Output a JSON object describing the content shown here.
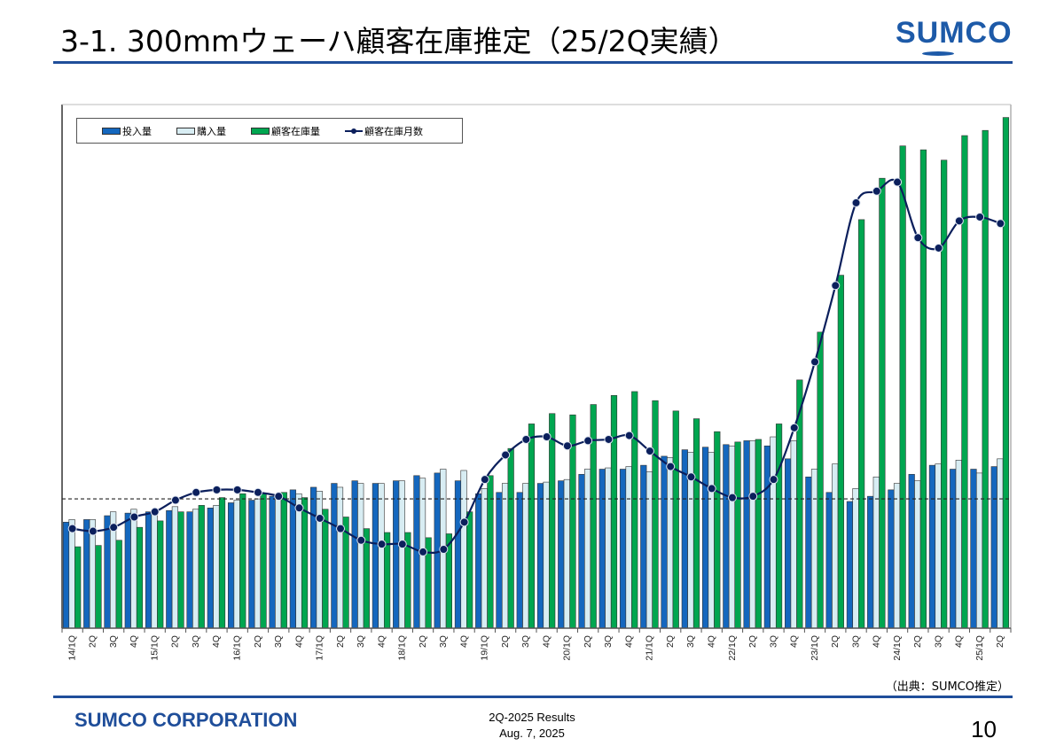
{
  "header": {
    "title": "3-1. 300mmウェーハ顧客在庫推定（25/2Q実績）",
    "logo_text": "SUMCO"
  },
  "footer": {
    "source": "（出典：SUMCO推定）",
    "company": "SUMCO CORPORATION",
    "results_line1": "2Q-2025 Results",
    "results_line2": "Aug. 7, 2025",
    "page_number": "10"
  },
  "colors": {
    "input": "#1467be",
    "purchase": "#d8edf3",
    "inventory": "#00a650",
    "months": "#0b1f5c",
    "brand": "#1f4e9a"
  },
  "chart_data": {
    "type": "bar",
    "title": "",
    "xlabel": "",
    "ylabel": "",
    "note": "No y-axis scale shown; values are relative index where dashed reference line = 100",
    "ylim": [
      0,
      405
    ],
    "reference_line": 100,
    "legend_position": "top-left",
    "legend": [
      "投入量",
      "購入量",
      "顧客在庫量",
      "顧客在庫月数"
    ],
    "categories": [
      "14/1Q",
      "2Q",
      "3Q",
      "4Q",
      "15/1Q",
      "2Q",
      "3Q",
      "4Q",
      "16/1Q",
      "2Q",
      "3Q",
      "4Q",
      "17/1Q",
      "2Q",
      "3Q",
      "4Q",
      "18/1Q",
      "2Q",
      "3Q",
      "4Q",
      "19/1Q",
      "2Q",
      "3Q",
      "4Q",
      "20/1Q",
      "2Q",
      "3Q",
      "4Q",
      "21/1Q",
      "2Q",
      "3Q",
      "4Q",
      "22/1Q",
      "2Q",
      "3Q",
      "4Q",
      "23/1Q",
      "2Q",
      "3Q",
      "4Q",
      "24/1Q",
      "2Q",
      "3Q",
      "4Q",
      "25/1Q",
      "2Q"
    ],
    "series": [
      {
        "name": "投入量",
        "type": "bar",
        "values": [
          82,
          84,
          87,
          89,
          90,
          91,
          90,
          93,
          97,
          99,
          102,
          107,
          109,
          112,
          114,
          112,
          114,
          118,
          120,
          114,
          104,
          105,
          105,
          112,
          114,
          119,
          123,
          123,
          126,
          133,
          138,
          140,
          142,
          145,
          141,
          131,
          117,
          105,
          98,
          102,
          107,
          119,
          126,
          123,
          123,
          125
        ]
      },
      {
        "name": "購入量",
        "type": "bar",
        "values": [
          84,
          84,
          90,
          92,
          88,
          94,
          92,
          95,
          99,
          100,
          101,
          104,
          106,
          109,
          112,
          112,
          114,
          116,
          123,
          122,
          108,
          112,
          112,
          113,
          115,
          123,
          124,
          125,
          121,
          132,
          136,
          136,
          141,
          145,
          148,
          145,
          123,
          127,
          108,
          117,
          112,
          114,
          127,
          130,
          120,
          131
        ]
      },
      {
        "name": "顧客在庫量",
        "type": "bar",
        "values": [
          63,
          64,
          68,
          78,
          83,
          90,
          95,
          101,
          104,
          104,
          105,
          101,
          92,
          86,
          77,
          74,
          74,
          70,
          73,
          90,
          118,
          139,
          158,
          166,
          165,
          173,
          180,
          183,
          176,
          168,
          162,
          152,
          144,
          146,
          158,
          192,
          229,
          273,
          316,
          348,
          373,
          370,
          362,
          381,
          385,
          395
        ]
      },
      {
        "name": "顧客在庫月数",
        "type": "line",
        "values": [
          77,
          75,
          78,
          86,
          90,
          99,
          105,
          107,
          107,
          105,
          102,
          93,
          85,
          77,
          68,
          65,
          65,
          59,
          61,
          82,
          115,
          134,
          146,
          148,
          141,
          145,
          146,
          149,
          137,
          125,
          117,
          108,
          101,
          102,
          115,
          155,
          206,
          265,
          329,
          338,
          345,
          302,
          294,
          315,
          318,
          313
        ]
      }
    ]
  }
}
